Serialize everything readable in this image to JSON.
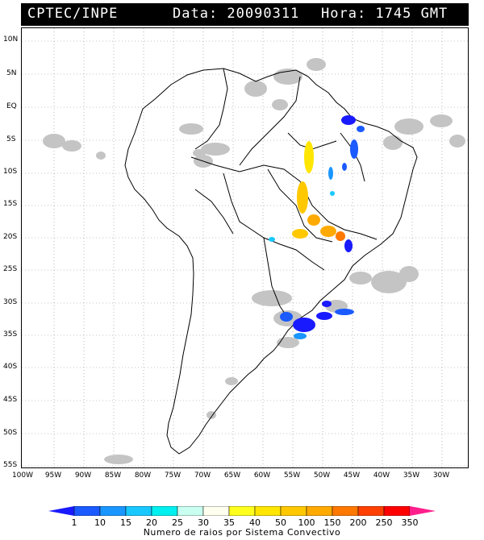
{
  "header": {
    "source": "CPTEC/INPE",
    "date_text": "Data: 20090311",
    "time_text": "Hora: 1745 GMT"
  },
  "map": {
    "lat_labels": [
      "10N",
      "5N",
      "EQ",
      "5S",
      "10S",
      "15S",
      "20S",
      "25S",
      "30S",
      "35S",
      "40S",
      "45S",
      "50S",
      "55S"
    ],
    "lon_labels": [
      "100W",
      "95W",
      "90W",
      "85W",
      "80W",
      "75W",
      "70W",
      "65W",
      "60W",
      "55W",
      "50W",
      "45W",
      "40W",
      "35W",
      "30W"
    ],
    "colors": {
      "land_border": "#000000",
      "cloud": "#c4c4c4",
      "grid": "#888888"
    }
  },
  "legend": {
    "values": [
      "1",
      "10",
      "15",
      "20",
      "25",
      "30",
      "35",
      "40",
      "50",
      "100",
      "150",
      "200",
      "250",
      "350"
    ],
    "colors": [
      "#1a1aff",
      "#1a5aff",
      "#1a96ff",
      "#18c8ff",
      "#00f0f0",
      "#c8fff0",
      "#fffff0",
      "#ffff1e",
      "#ffe600",
      "#ffc800",
      "#ffaa00",
      "#ff7800",
      "#ff4000",
      "#ff0000",
      "#ff1e8c"
    ],
    "caption": "Numero de raios por Sistema Convectivo"
  }
}
